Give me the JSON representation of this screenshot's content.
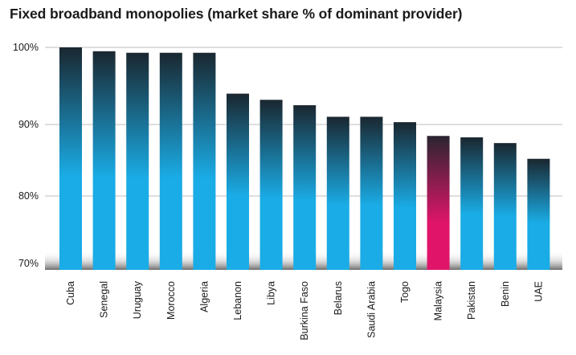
{
  "chart_data": {
    "type": "bar",
    "title": "Fixed broadband monopolies (market share % of dominant provider)",
    "xlabel": "",
    "ylabel": "",
    "categories": [
      "Cuba",
      "Senegal",
      "Uruguay",
      "Morocco",
      "Algeria",
      "Lebanon",
      "Libya",
      "Burkina Faso",
      "Belarus",
      "Saudi Arabia",
      "Togo",
      "Malaysia",
      "Pakistan",
      "Benin",
      "UAE"
    ],
    "values": [
      100,
      99.5,
      99.3,
      99.3,
      99.3,
      94,
      93.2,
      92.5,
      91,
      91,
      90.3,
      88.4,
      88.2,
      87.4,
      85.2
    ],
    "highlight": "Malaysia",
    "y_ticks": [
      {
        "value": 100,
        "label": "100%"
      },
      {
        "value": 90,
        "label": "90%"
      },
      {
        "value": 80,
        "label": "80%"
      },
      {
        "value": 70,
        "label": "70%"
      }
    ],
    "ylim": [
      70,
      100
    ],
    "grid": true,
    "colors": {
      "bar_top": "#1a2730",
      "bar_bottom": "#1aace6",
      "highlight_top": "#2a2530",
      "highlight_bottom": "#e0156a",
      "gridline": "#bdbdbd",
      "baseline_shadow": "#7a7a7a"
    }
  }
}
